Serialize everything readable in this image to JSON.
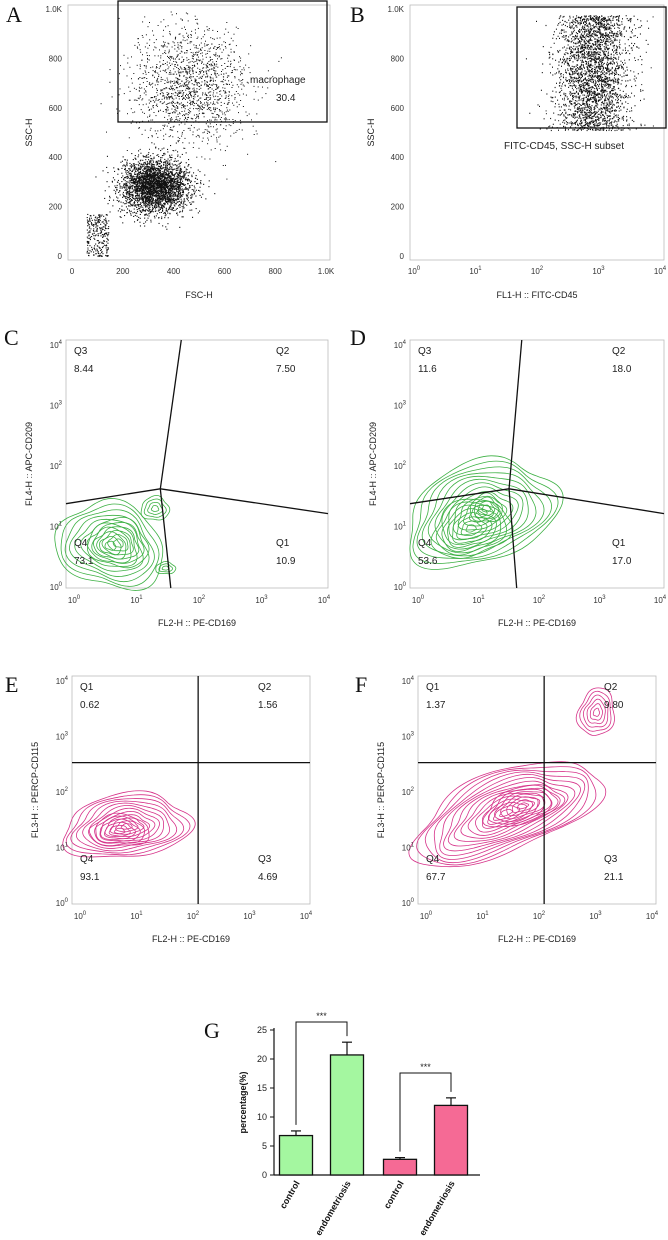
{
  "panels": [
    {
      "letter": "A",
      "kind": "scatter",
      "xlabel": "FSC-H",
      "ylabel": "SSC-H",
      "xticks": [
        "0",
        "200",
        "400",
        "600",
        "800",
        "1.0K"
      ],
      "yticks": [
        "0",
        "200",
        "400",
        "600",
        "800",
        "1.0K"
      ],
      "gate": {
        "name": "macrophage",
        "value": "30.4"
      }
    },
    {
      "letter": "B",
      "kind": "scatter",
      "xlabel": "FL1-H :: FITC-CD45",
      "ylabel": "SSC-H",
      "xticks": [
        "10^0",
        "10^1",
        "10^2",
        "10^3",
        "10^4"
      ],
      "yticks": [
        "0",
        "200",
        "400",
        "600",
        "800",
        "1.0K"
      ],
      "gate": {
        "name": "FITC-CD45, SSC-H subset"
      }
    },
    {
      "letter": "C",
      "kind": "contour",
      "color": "#3cb043",
      "xlabel": "FL2-H :: PE-CD169",
      "ylabel": "FL4-H :: APC-CD209",
      "xticks": [
        "10^0",
        "10^1",
        "10^2",
        "10^3",
        "10^4"
      ],
      "yticks": [
        "10^0",
        "10^1",
        "10^2",
        "10^3",
        "10^4"
      ],
      "quadrants": [
        {
          "name": "Q3",
          "value": "8.44",
          "pos": "top-left"
        },
        {
          "name": "Q2",
          "value": "7.50",
          "pos": "top-right"
        },
        {
          "name": "Q4",
          "value": "73.1",
          "pos": "bottom-left"
        },
        {
          "name": "Q1",
          "value": "10.9",
          "pos": "bottom-right"
        }
      ]
    },
    {
      "letter": "D",
      "kind": "contour",
      "color": "#3cb043",
      "xlabel": "FL2-H :: PE-CD169",
      "ylabel": "FL4-H :: APC-CD209",
      "xticks": [
        "10^0",
        "10^1",
        "10^2",
        "10^3",
        "10^4"
      ],
      "yticks": [
        "10^0",
        "10^1",
        "10^2",
        "10^3",
        "10^4"
      ],
      "quadrants": [
        {
          "name": "Q3",
          "value": "11.6",
          "pos": "top-left"
        },
        {
          "name": "Q2",
          "value": "18.0",
          "pos": "top-right"
        },
        {
          "name": "Q4",
          "value": "53.6",
          "pos": "bottom-left"
        },
        {
          "name": "Q1",
          "value": "17.0",
          "pos": "bottom-right"
        }
      ]
    },
    {
      "letter": "E",
      "kind": "contour",
      "color": "#d6338a",
      "xlabel": "FL2-H :: PE-CD169",
      "ylabel": "FL3-H :: PERCP-CD115",
      "xticks": [
        "10^0",
        "10^1",
        "10^2",
        "10^3",
        "10^4"
      ],
      "yticks": [
        "10^0",
        "10^1",
        "10^2",
        "10^3",
        "10^4"
      ],
      "quadrants": [
        {
          "name": "Q1",
          "value": "0.62",
          "pos": "top-left"
        },
        {
          "name": "Q2",
          "value": "1.56",
          "pos": "top-right"
        },
        {
          "name": "Q4",
          "value": "93.1",
          "pos": "bottom-left"
        },
        {
          "name": "Q3",
          "value": "4.69",
          "pos": "bottom-right"
        }
      ]
    },
    {
      "letter": "F",
      "kind": "contour",
      "color": "#d6338a",
      "xlabel": "FL2-H :: PE-CD169",
      "ylabel": "FL3-H :: PERCP-CD115",
      "xticks": [
        "10^0",
        "10^1",
        "10^2",
        "10^3",
        "10^4"
      ],
      "yticks": [
        "10^0",
        "10^1",
        "10^2",
        "10^3",
        "10^4"
      ],
      "quadrants": [
        {
          "name": "Q1",
          "value": "1.37",
          "pos": "top-left"
        },
        {
          "name": "Q2",
          "value": "9.80",
          "pos": "top-right"
        },
        {
          "name": "Q4",
          "value": "67.7",
          "pos": "bottom-left"
        },
        {
          "name": "Q3",
          "value": "21.1",
          "pos": "bottom-right"
        }
      ]
    }
  ],
  "chart_data": {
    "type": "bar",
    "letter": "G",
    "title": "",
    "ylabel": "percentage(%)",
    "xlabel": "",
    "ylim": [
      0,
      25
    ],
    "yticks": [
      0,
      5,
      10,
      15,
      20,
      25
    ],
    "categories": [
      "control",
      "endometriosis",
      "control",
      "endometriosis"
    ],
    "values": [
      6.8,
      20.7,
      2.7,
      12.0
    ],
    "errors": [
      0.8,
      2.2,
      0.3,
      1.3
    ],
    "colors": [
      "#a4f7a0",
      "#a4f7a0",
      "#f56a95",
      "#f56a95"
    ],
    "significance": [
      {
        "between": [
          0,
          1
        ],
        "label": "***"
      },
      {
        "between": [
          2,
          3
        ],
        "label": "***"
      }
    ]
  }
}
